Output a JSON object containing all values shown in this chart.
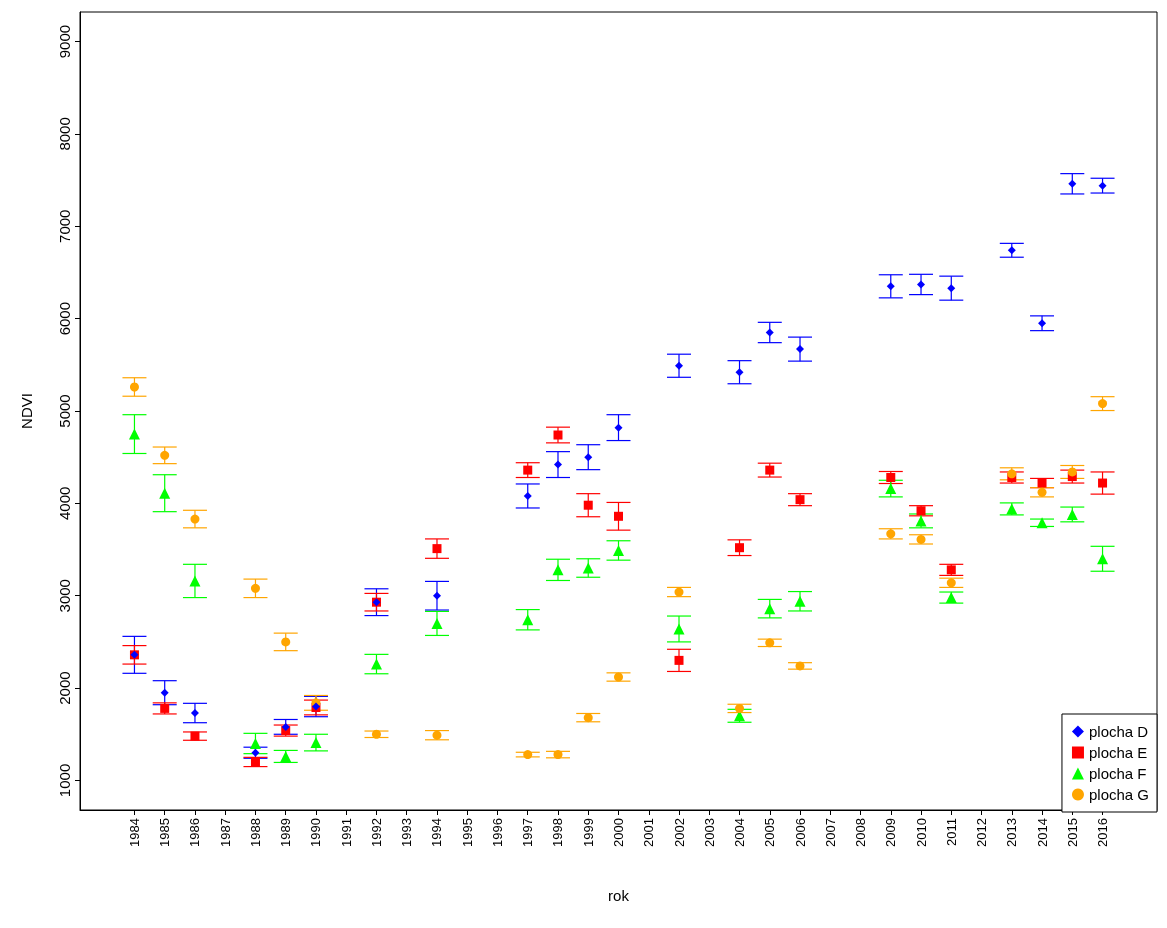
{
  "chart_data": {
    "type": "scatter",
    "xlabel": "rok",
    "ylabel": "NDVI",
    "x": [
      1984,
      1985,
      1986,
      1988,
      1989,
      1990,
      1992,
      1994,
      1997,
      1998,
      1999,
      2000,
      2002,
      2004,
      2005,
      2006,
      2009,
      2010,
      2011,
      2013,
      2014,
      2015,
      2016
    ],
    "xlim": [
      1982.2,
      2017.8
    ],
    "xticks": [
      1984,
      1985,
      1986,
      1987,
      1988,
      1989,
      1990,
      1991,
      1992,
      1993,
      1994,
      1995,
      1996,
      1997,
      1998,
      1999,
      2000,
      2001,
      2002,
      2003,
      2004,
      2005,
      2006,
      2007,
      2008,
      2009,
      2010,
      2011,
      2012,
      2013,
      2014,
      2015,
      2016
    ],
    "ylim": [
      680,
      9320
    ],
    "yticks": [
      1000,
      2000,
      3000,
      4000,
      5000,
      6000,
      7000,
      8000,
      9000
    ],
    "grid": false,
    "legend": "bottom right",
    "series": [
      {
        "name": "plocha D",
        "color": "#0000ff",
        "marker": "diamond",
        "values": [
          2360,
          1950,
          1730,
          1300,
          1580,
          1800,
          2930,
          3000,
          4080,
          4420,
          4500,
          4820,
          5490,
          5420,
          5850,
          5670,
          6350,
          6370,
          6330,
          6740,
          5950,
          7460,
          7440
        ],
        "errors": [
          200,
          130,
          105,
          60,
          80,
          110,
          145,
          155,
          130,
          140,
          135,
          140,
          125,
          125,
          110,
          130,
          125,
          110,
          130,
          75,
          80,
          110,
          80
        ]
      },
      {
        "name": "plocha E",
        "color": "#ff0000",
        "marker": "square",
        "values": [
          2360,
          1780,
          1480,
          1200,
          1540,
          1790,
          2930,
          3510,
          4360,
          4740,
          3980,
          3860,
          2300,
          3520,
          4360,
          4040,
          4280,
          3920,
          3280,
          4280,
          4220,
          4290,
          4220
        ],
        "errors": [
          100,
          60,
          45,
          50,
          60,
          80,
          95,
          105,
          80,
          85,
          125,
          150,
          120,
          85,
          75,
          65,
          65,
          55,
          60,
          60,
          50,
          70,
          120
        ]
      },
      {
        "name": "plocha F",
        "color": "#00ff00",
        "marker": "triangle",
        "values": [
          4750,
          4110,
          3160,
          1400,
          1260,
          1410,
          2260,
          2700,
          2740,
          3280,
          3300,
          3490,
          2640,
          1700,
          2860,
          2940,
          4160,
          3810,
          2980,
          3940,
          3790,
          3880,
          3400
        ],
        "errors": [
          210,
          200,
          180,
          110,
          65,
          90,
          105,
          130,
          110,
          115,
          100,
          105,
          140,
          70,
          100,
          105,
          90,
          75,
          60,
          65,
          40,
          80,
          135
        ]
      },
      {
        "name": "plocha G",
        "color": "#ffa500",
        "marker": "circle",
        "values": [
          5260,
          4520,
          3830,
          3080,
          2500,
          1840,
          1500,
          1490,
          1280,
          1280,
          1680,
          2120,
          3040,
          1780,
          2490,
          2240,
          3670,
          3610,
          3140,
          4320,
          4120,
          4340,
          5080
        ],
        "errors": [
          100,
          90,
          95,
          100,
          95,
          80,
          35,
          50,
          25,
          35,
          45,
          45,
          50,
          45,
          40,
          35,
          55,
          50,
          50,
          65,
          50,
          70,
          75
        ]
      }
    ]
  }
}
